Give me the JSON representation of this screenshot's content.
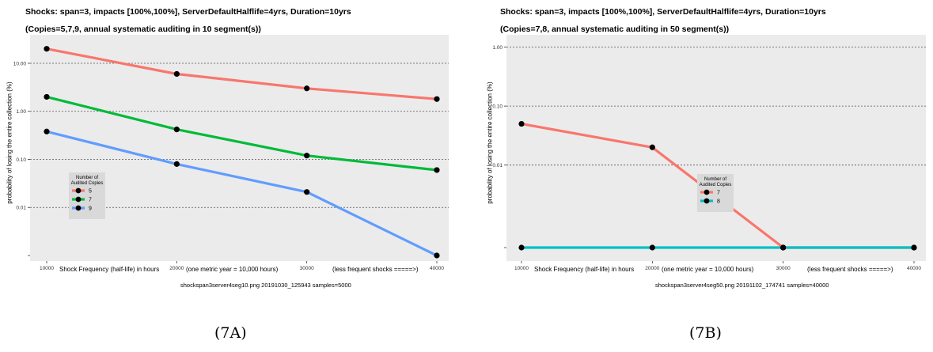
{
  "panels": [
    {
      "title_line1": "Shocks: span=3, impacts [100%,100%], ServerDefaultHalflife=4yrs, Duration=10yrs",
      "title_line2": "(Copies=5,7,9, annual systematic auditing in 10 segment(s))",
      "ylabel": "probability of losing the entire collection (%)",
      "xlabel": "Shock Frequency (half-life) in hours",
      "x_note": "(one metric year = 10,000 hours)",
      "x_more": "(less frequent shocks =====>)",
      "caption": "shockspan3server4seg10.png   20191030_125943   samples=5000",
      "subcaption": "(7A)"
    },
    {
      "title_line1": "Shocks: span=3, impacts [100%,100%], ServerDefaultHalflife=4yrs, Duration=10yrs",
      "title_line2": "(Copies=7,8, annual systematic auditing in 50 segment(s))",
      "ylabel": "probability of losing the entire collection (%)",
      "xlabel": "Shock Frequency (half-life) in hours",
      "x_note": "(one metric year = 10,000 hours)",
      "x_more": "(less frequent shocks =====>)",
      "caption": "shockspan3server4seg50.png   20191102_174741   samples=40000",
      "subcaption": "(7B)"
    }
  ],
  "chart_data": [
    {
      "type": "line",
      "yscale": "log",
      "x": [
        10000,
        20000,
        30000,
        40000
      ],
      "x_ticks": [
        "10000",
        "20000",
        "30000",
        "40000"
      ],
      "y_ticks": [
        "0.01",
        "0.10",
        "1.00",
        "10.00"
      ],
      "ylim": [
        0.001,
        30
      ],
      "grid": "horizontal dotted",
      "legend": {
        "title_line1": "Number of",
        "title_line2": "Audited Copies",
        "placement": "center-left"
      },
      "series": [
        {
          "name": "5",
          "color": "#f8766d",
          "values": [
            20,
            6,
            3,
            1.8
          ]
        },
        {
          "name": "7",
          "color": "#00ba38",
          "values": [
            2.0,
            0.42,
            0.12,
            0.06
          ]
        },
        {
          "name": "9",
          "color": "#619cff",
          "values": [
            0.38,
            0.08,
            0.021,
            0.001
          ]
        }
      ]
    },
    {
      "type": "line",
      "yscale": "log",
      "x": [
        10000,
        20000,
        30000,
        40000
      ],
      "x_ticks": [
        "10000",
        "20000",
        "30000",
        "40000"
      ],
      "y_ticks": [
        "0.01",
        "0.10",
        "1.00"
      ],
      "ylim": [
        0.0004,
        1.3
      ],
      "grid": "horizontal dotted",
      "legend": {
        "title_line1": "Number of",
        "title_line2": "Audited Copies",
        "placement": "center"
      },
      "series": [
        {
          "name": "7",
          "color": "#f8766d",
          "values": [
            0.05,
            0.02,
            0.0004,
            0.0004
          ]
        },
        {
          "name": "8",
          "color": "#00bfc4",
          "values": [
            0.0004,
            0.0004,
            0.0004,
            0.0004
          ]
        }
      ]
    }
  ]
}
